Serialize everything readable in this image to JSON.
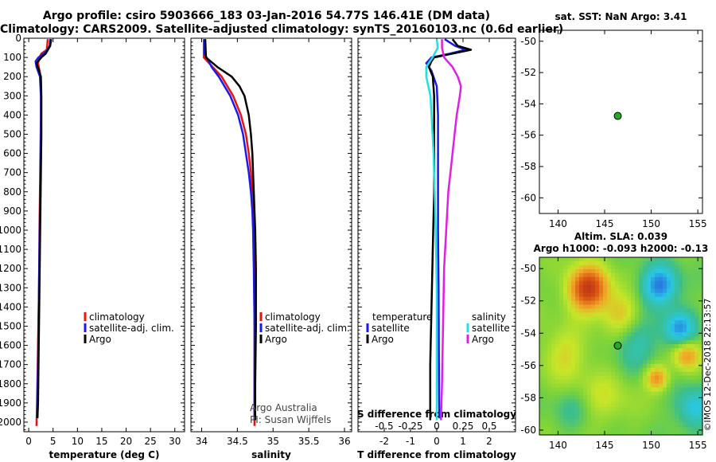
{
  "header": {
    "line1": "Argo profile: csiro 5903666_183 03-Jan-2016 54.77S 146.41E (DM data)",
    "line2": "Climatology: CARS2009. Satellite-adjusted climatology: synTS_20160103.nc (0.6d earlier)"
  },
  "colors": {
    "climatology": "#ee1111",
    "satellite": "#1a1aee",
    "argo": "#000000",
    "sat_salinity": "#22e0e0",
    "argo_salinity": "#e020e0"
  },
  "chart_data": [
    {
      "type": "line",
      "name": "temperature",
      "xlabel": "temperature (deg C)",
      "xlim": [
        -1,
        32
      ],
      "xticks": [
        0,
        5,
        10,
        15,
        20,
        25,
        30
      ],
      "ylim": [
        0,
        2050
      ],
      "yticks": [
        0,
        100,
        200,
        300,
        400,
        500,
        600,
        700,
        800,
        900,
        1000,
        1100,
        1200,
        1300,
        1400,
        1500,
        1600,
        1700,
        1800,
        1900,
        2000
      ],
      "legend": [
        {
          "label": "climatology",
          "key": "climatology"
        },
        {
          "label": "satellite-adj. clim.",
          "key": "satellite"
        },
        {
          "label": "Argo",
          "key": "argo"
        }
      ],
      "series": [
        {
          "name": "climatology",
          "key": "climatology",
          "depth": [
            5,
            60,
            80,
            100,
            130,
            180,
            250,
            400,
            600,
            800,
            1000,
            1300,
            1600,
            1900,
            2020
          ],
          "values": [
            3.9,
            3.7,
            2.6,
            2.2,
            1.9,
            2.3,
            2.5,
            2.5,
            2.4,
            2.3,
            2.2,
            2.1,
            1.9,
            1.7,
            1.6
          ]
        },
        {
          "name": "satellite-adj. clim.",
          "key": "satellite",
          "depth": [
            5,
            40,
            70,
            100,
            120,
            150,
            200,
            300,
            500,
            700,
            900,
            1100,
            1300,
            1500,
            1700,
            1900,
            1980
          ],
          "values": [
            4.4,
            4.3,
            3.5,
            2.0,
            1.4,
            1.6,
            2.3,
            2.5,
            2.5,
            2.4,
            2.3,
            2.2,
            2.1,
            2.0,
            1.9,
            1.8,
            1.7
          ]
        },
        {
          "name": "Argo",
          "key": "argo",
          "depth": [
            5,
            40,
            80,
            100,
            130,
            160,
            200,
            300,
            500,
            700,
            900,
            1100,
            1300,
            1500,
            1700,
            1900,
            1980
          ],
          "values": [
            4.6,
            4.4,
            3.5,
            2.6,
            1.6,
            2.0,
            2.5,
            2.6,
            2.6,
            2.5,
            2.4,
            2.3,
            2.2,
            2.1,
            2.0,
            1.9,
            1.8
          ]
        }
      ]
    },
    {
      "type": "line",
      "name": "salinity",
      "xlabel": "salinity",
      "xlim": [
        33.85,
        36.1
      ],
      "xticks": [
        34,
        34.5,
        35,
        35.5,
        36
      ],
      "xticklabels": [
        "34",
        "34.5",
        "35",
        "35.5",
        "36"
      ],
      "ylim": [
        0,
        2050
      ],
      "legend": [
        {
          "label": "climatology",
          "key": "climatology"
        },
        {
          "label": "satellite-adj. clim.",
          "key": "satellite"
        },
        {
          "label": "Argo",
          "key": "argo"
        }
      ],
      "annotation": [
        "Argo Australia",
        "PI: Susan Wijffels"
      ],
      "series": [
        {
          "name": "climatology",
          "key": "climatology",
          "depth": [
            5,
            100,
            200,
            300,
            400,
            500,
            600,
            700,
            800,
            900,
            1000,
            1200,
            1500,
            1800,
            2020
          ],
          "values": [
            34.03,
            34.03,
            34.28,
            34.44,
            34.55,
            34.62,
            34.66,
            34.69,
            34.71,
            34.72,
            34.73,
            34.735,
            34.74,
            34.74,
            34.74
          ]
        },
        {
          "name": "satellite-adj. clim.",
          "key": "satellite",
          "depth": [
            5,
            80,
            150,
            200,
            300,
            400,
            500,
            600,
            700,
            800,
            900,
            1000,
            1200,
            1500,
            1800,
            1990
          ],
          "values": [
            34.04,
            34.04,
            34.14,
            34.24,
            34.4,
            34.51,
            34.58,
            34.62,
            34.66,
            34.69,
            34.71,
            34.72,
            34.73,
            34.74,
            34.74,
            34.74
          ]
        },
        {
          "name": "Argo",
          "key": "argo",
          "depth": [
            5,
            100,
            150,
            200,
            250,
            300,
            400,
            500,
            600,
            700,
            800,
            900,
            1000,
            1200,
            1500,
            1800,
            1990
          ],
          "values": [
            34.05,
            34.06,
            34.22,
            34.42,
            34.53,
            34.6,
            34.66,
            34.69,
            34.71,
            34.72,
            34.73,
            34.74,
            34.75,
            34.76,
            34.76,
            34.75,
            34.75
          ]
        }
      ]
    },
    {
      "type": "line",
      "name": "difference",
      "xlabel": "T difference from climatology",
      "xlabel2": "S difference from climatology",
      "xlim": [
        -3,
        3
      ],
      "xticks": [
        -2,
        -1,
        0,
        1,
        2
      ],
      "s_xticks": [
        -0.5,
        -0.25,
        0,
        0.25,
        0.5
      ],
      "s_xticklabels": [
        "-0.5",
        "-0.25",
        "0",
        "0.25",
        "0.5"
      ],
      "ylim": [
        0,
        2050
      ],
      "legend_left_title": "temperature",
      "legend_right_title": "salinity",
      "legend_left": [
        {
          "label": "satellite",
          "key": "satellite"
        },
        {
          "label": "Argo",
          "key": "argo"
        }
      ],
      "legend_right": [
        {
          "label": "satellite",
          "key": "sat_salinity"
        },
        {
          "label": "Argo",
          "key": "argo_salinity"
        }
      ],
      "series": [
        {
          "name": "T satellite",
          "key": "satellite",
          "depth": [
            5,
            40,
            60,
            80,
            100,
            130,
            170,
            250,
            400,
            700,
            1000,
            1300,
            1600,
            1900,
            1980
          ],
          "values": [
            0.3,
            0.7,
            1.1,
            0.5,
            -0.2,
            -0.4,
            -0.2,
            0,
            0.05,
            0.05,
            0.05,
            0.07,
            0.08,
            0.09,
            0.1
          ]
        },
        {
          "name": "T Argo",
          "key": "argo",
          "depth": [
            5,
            40,
            60,
            80,
            100,
            120,
            150,
            200,
            300,
            500,
            800,
            1100,
            1400,
            1700,
            1990
          ],
          "values": [
            0.6,
            0.8,
            1.3,
            0.6,
            -0.1,
            -0.2,
            -0.3,
            -0.15,
            -0.1,
            -0.1,
            -0.1,
            -0.15,
            -0.2,
            -0.25,
            -0.25
          ]
        },
        {
          "name": "S satellite",
          "key": "sat_salinity",
          "depth": [
            5,
            50,
            100,
            150,
            200,
            250,
            300,
            400,
            500,
            600,
            800,
            1000,
            1300,
            1600,
            1990
          ],
          "values": [
            0,
            0.01,
            -0.04,
            -0.1,
            -0.1,
            -0.08,
            -0.06,
            -0.05,
            -0.04,
            -0.03,
            -0.02,
            -0.01,
            0,
            0,
            0
          ]
        },
        {
          "name": "S Argo",
          "key": "argo_salinity",
          "depth": [
            5,
            50,
            100,
            150,
            200,
            250,
            300,
            400,
            500,
            600,
            700,
            800,
            1000,
            1200,
            1500,
            1800,
            1990
          ],
          "values": [
            0.05,
            0.05,
            0.07,
            0.15,
            0.2,
            0.23,
            0.22,
            0.19,
            0.17,
            0.15,
            0.13,
            0.11,
            0.09,
            0.07,
            0.06,
            0.05,
            0.04
          ]
        }
      ]
    },
    {
      "type": "scatter",
      "name": "sst",
      "title": "sat. SST: NaN Argo: 3.41",
      "xlim": [
        138,
        155.5
      ],
      "ylim": [
        -61,
        -49.3
      ],
      "xticks": [
        140,
        145,
        150,
        155
      ],
      "yticks": [
        -50,
        -52,
        -54,
        -56,
        -58,
        -60
      ],
      "points": [
        {
          "x": 146.41,
          "y": -54.77
        }
      ]
    },
    {
      "type": "heatmap",
      "name": "sla",
      "title1": "Altim. SLA: 0.039",
      "title2": "Argo h1000: -0.093 h2000: -0.13",
      "xlim": [
        138,
        155.5
      ],
      "ylim": [
        -60.3,
        -49.3
      ],
      "xticks": [
        140,
        145,
        150,
        155
      ],
      "yticks": [
        -50,
        -52,
        -54,
        -56,
        -58,
        -60
      ],
      "points": [
        {
          "x": 146.41,
          "y": -54.77
        }
      ],
      "credit": "©IMOS 12-Dec-2018 22:13:57"
    }
  ]
}
